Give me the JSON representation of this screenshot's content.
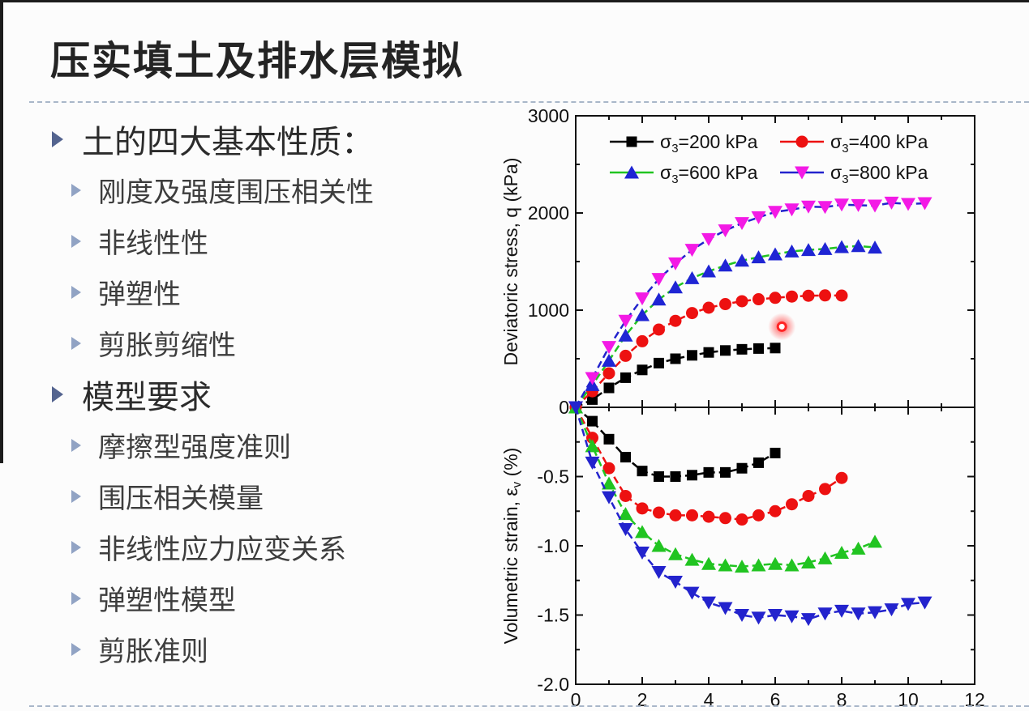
{
  "slide": {
    "title": "压实填土及排水层模拟",
    "bullets": [
      {
        "level": 1,
        "text": "土的四大基本性质："
      },
      {
        "level": 2,
        "text": "刚度及强度围压相关性"
      },
      {
        "level": 2,
        "text": "非线性性"
      },
      {
        "level": 2,
        "text": "弹塑性"
      },
      {
        "level": 2,
        "text": "剪胀剪缩性"
      },
      {
        "level": 1,
        "text": "模型要求"
      },
      {
        "level": 2,
        "text": "摩擦型强度准则"
      },
      {
        "level": 2,
        "text": "围压相关模量"
      },
      {
        "level": 2,
        "text": "非线性应力应变关系"
      },
      {
        "level": 2,
        "text": "弹塑性模型"
      },
      {
        "level": 2,
        "text": "剪胀准则"
      }
    ]
  },
  "chart_data": [
    {
      "type": "line",
      "panel": "top",
      "title": "",
      "xlabel": "",
      "ylabel": "Deviatoric stress, q (kPa)",
      "xlim": [
        0,
        12
      ],
      "ylim": [
        0,
        3000
      ],
      "grid": false,
      "x_ticks": [
        0,
        2,
        4,
        6,
        8,
        10,
        12
      ],
      "x_minor_ticks": [
        1,
        3,
        5,
        7,
        9,
        11
      ],
      "y_ticks": [
        0,
        1000,
        2000,
        3000
      ],
      "y_tick_labels": [
        "0",
        "1000",
        "2000",
        "3000"
      ],
      "y_minor_ticks": [
        500,
        1500,
        2500
      ],
      "legend_position": "top-inside",
      "legend_entries": [
        {
          "label": "σ₃=200 kPa",
          "marker": "square",
          "marker_color": "#000000",
          "line_color": "#000000"
        },
        {
          "label": "σ₃=400 kPa",
          "marker": "circle",
          "marker_color": "#ed1111",
          "line_color": "#ed1111"
        },
        {
          "label": "σ₃=600 kPa",
          "marker": "triangle-up",
          "marker_color": "#1f25d4",
          "line_color": "#21c421"
        },
        {
          "label": "σ₃=800 kPa",
          "marker": "triangle-down",
          "marker_color": "#f31ae5",
          "line_color": "#2323cd"
        }
      ],
      "series": [
        {
          "name": "σ₃=200 kPa",
          "marker": "square",
          "marker_color": "#000000",
          "line_color": "#000000",
          "x": [
            0,
            0.5,
            1,
            1.5,
            2,
            2.5,
            3,
            3.5,
            4,
            4.5,
            5,
            5.5,
            6
          ],
          "y": [
            0,
            80,
            200,
            305,
            385,
            455,
            500,
            535,
            565,
            585,
            597,
            605,
            610
          ]
        },
        {
          "name": "σ₃=400 kPa",
          "marker": "circle",
          "marker_color": "#ed1111",
          "line_color": "#ed1111",
          "x": [
            0,
            0.5,
            1,
            1.5,
            2,
            2.5,
            3,
            3.5,
            4,
            4.5,
            5,
            5.5,
            6,
            6.5,
            7,
            7.5,
            8
          ],
          "y": [
            0,
            165,
            350,
            530,
            680,
            800,
            890,
            970,
            1025,
            1062,
            1092,
            1112,
            1127,
            1140,
            1148,
            1152,
            1150
          ]
        },
        {
          "name": "σ₃=600 kPa",
          "marker": "triangle-up",
          "marker_color": "#1f25d4",
          "line_color": "#21c421",
          "x": [
            0,
            0.5,
            1,
            1.5,
            2,
            2.5,
            3,
            3.5,
            4,
            4.5,
            5,
            5.5,
            6,
            6.5,
            7,
            7.5,
            8,
            8.5,
            9
          ],
          "y": [
            0,
            230,
            480,
            740,
            950,
            1110,
            1235,
            1330,
            1400,
            1460,
            1510,
            1545,
            1575,
            1605,
            1620,
            1630,
            1650,
            1660,
            1645
          ]
        },
        {
          "name": "σ₃=800 kPa",
          "marker": "triangle-down",
          "marker_color": "#f31ae5",
          "line_color": "#2323cd",
          "x": [
            0,
            0.5,
            1,
            1.5,
            2,
            2.5,
            3,
            3.5,
            4,
            4.5,
            5,
            5.5,
            6,
            6.5,
            7,
            7.5,
            8,
            8.5,
            9,
            9.5,
            10,
            10.5
          ],
          "y": [
            0,
            300,
            620,
            890,
            1120,
            1320,
            1480,
            1620,
            1730,
            1820,
            1895,
            1955,
            2010,
            2035,
            2065,
            2060,
            2085,
            2080,
            2075,
            2105,
            2092,
            2100
          ]
        }
      ],
      "annotations": [
        {
          "type": "laser-pointer-dot",
          "x": 6.2,
          "y": 830,
          "color": "#ff2525"
        }
      ]
    },
    {
      "type": "line",
      "panel": "bottom",
      "title": "",
      "xlabel": "",
      "ylabel": "Volumetric strain, εᵥ (%)",
      "ylabel_parts": {
        "pre": "Volumetric strain, ε",
        "sub": "v",
        "post": " (%)"
      },
      "xlim": [
        0,
        12
      ],
      "ylim": [
        -2.0,
        0
      ],
      "grid": false,
      "x_ticks": [
        0,
        2,
        4,
        6,
        8,
        10,
        12
      ],
      "x_tick_labels": [
        "0",
        "2",
        "4",
        "6",
        "8",
        "10",
        "12"
      ],
      "x_minor_ticks": [
        1,
        3,
        5,
        7,
        9,
        11
      ],
      "y_ticks": [
        -0.5,
        -1.0,
        -1.5,
        -2.0
      ],
      "y_tick_labels": [
        "-0.5",
        "-1.0",
        "-1.5",
        "-2.0"
      ],
      "y_minor_ticks": [
        -0.25,
        -0.75,
        -1.25,
        -1.75
      ],
      "series": [
        {
          "name": "σ₃=200 kPa",
          "marker": "square",
          "marker_color": "#000000",
          "line_color": "#000000",
          "x": [
            0,
            0.5,
            1,
            1.5,
            2,
            2.5,
            3,
            3.5,
            4,
            4.5,
            5,
            5.5,
            6
          ],
          "y": [
            0,
            -0.1,
            -0.23,
            -0.36,
            -0.46,
            -0.5,
            -0.5,
            -0.49,
            -0.47,
            -0.47,
            -0.44,
            -0.4,
            -0.33
          ]
        },
        {
          "name": "σ₃=400 kPa",
          "marker": "circle",
          "marker_color": "#ed1111",
          "line_color": "#ed1111",
          "x": [
            0,
            0.5,
            1,
            1.5,
            2,
            2.5,
            3,
            3.5,
            4,
            4.5,
            5,
            5.5,
            6,
            6.5,
            7,
            7.5,
            8
          ],
          "y": [
            0,
            -0.22,
            -0.44,
            -0.64,
            -0.73,
            -0.76,
            -0.78,
            -0.78,
            -0.79,
            -0.8,
            -0.81,
            -0.78,
            -0.75,
            -0.7,
            -0.64,
            -0.59,
            -0.51
          ]
        },
        {
          "name": "σ₃=600 kPa",
          "marker": "triangle-up",
          "marker_color": "#21c421",
          "line_color": "#21c421",
          "x": [
            0,
            0.5,
            1,
            1.5,
            2,
            2.5,
            3,
            3.5,
            4,
            4.5,
            5,
            5.5,
            6,
            6.5,
            7,
            7.5,
            8,
            8.5,
            9
          ],
          "y": [
            0,
            -0.28,
            -0.55,
            -0.77,
            -0.9,
            -1.0,
            -1.06,
            -1.1,
            -1.13,
            -1.14,
            -1.15,
            -1.14,
            -1.13,
            -1.14,
            -1.12,
            -1.09,
            -1.05,
            -1.02,
            -0.97
          ]
        },
        {
          "name": "σ₃=800 kPa",
          "marker": "triangle-down",
          "marker_color": "#2323cd",
          "line_color": "#2323cd",
          "x": [
            0,
            0.5,
            1,
            1.5,
            2,
            2.5,
            3,
            3.5,
            4,
            4.5,
            5,
            5.5,
            6,
            6.5,
            7,
            7.5,
            8,
            8.5,
            9,
            9.5,
            10,
            10.5
          ],
          "y": [
            0,
            -0.4,
            -0.65,
            -0.88,
            -1.05,
            -1.19,
            -1.26,
            -1.34,
            -1.41,
            -1.45,
            -1.5,
            -1.52,
            -1.5,
            -1.51,
            -1.53,
            -1.49,
            -1.47,
            -1.49,
            -1.48,
            -1.46,
            -1.42,
            -1.41
          ]
        }
      ]
    }
  ]
}
